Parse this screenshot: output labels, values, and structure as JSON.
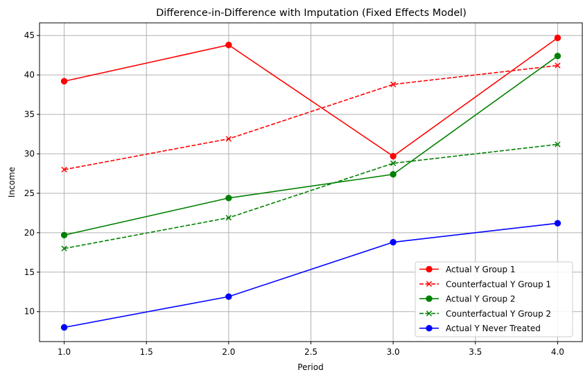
{
  "chart_data": {
    "type": "line",
    "title": "Difference-in-Difference with Imputation (Fixed Effects Model)",
    "xlabel": "Period",
    "ylabel": "Income",
    "xlim": [
      0.85,
      4.15
    ],
    "ylim": [
      6.2,
      46.6
    ],
    "xticks": [
      1.0,
      1.5,
      2.0,
      2.5,
      3.0,
      3.5,
      4.0
    ],
    "xtick_labels": [
      "1.0",
      "1.5",
      "2.0",
      "2.5",
      "3.0",
      "3.5",
      "4.0"
    ],
    "yticks": [
      10,
      15,
      20,
      25,
      30,
      35,
      40,
      45
    ],
    "ytick_labels": [
      "10",
      "15",
      "20",
      "25",
      "30",
      "35",
      "40",
      "45"
    ],
    "grid": true,
    "legend_position": "lower-right",
    "x": [
      1.0,
      2.0,
      3.0,
      4.0
    ],
    "series": [
      {
        "name": "Actual Y Group 1",
        "values": [
          39.2,
          43.8,
          29.7,
          44.7
        ],
        "color": "#ff0000",
        "style": "solid",
        "marker": "circle"
      },
      {
        "name": "Counterfactual Y Group 1",
        "values": [
          28.0,
          31.9,
          38.8,
          41.2
        ],
        "color": "#ff0000",
        "style": "dashed",
        "marker": "x"
      },
      {
        "name": "Actual Y Group 2",
        "values": [
          19.7,
          24.4,
          27.4,
          42.4
        ],
        "color": "#008000",
        "style": "solid",
        "marker": "circle"
      },
      {
        "name": "Counterfactual Y Group 2",
        "values": [
          18.0,
          21.9,
          28.8,
          31.2
        ],
        "color": "#008000",
        "style": "dashed",
        "marker": "x"
      },
      {
        "name": "Actual Y Never Treated",
        "values": [
          8.0,
          11.9,
          18.8,
          21.2
        ],
        "color": "#0000ff",
        "style": "solid",
        "marker": "circle"
      }
    ]
  }
}
